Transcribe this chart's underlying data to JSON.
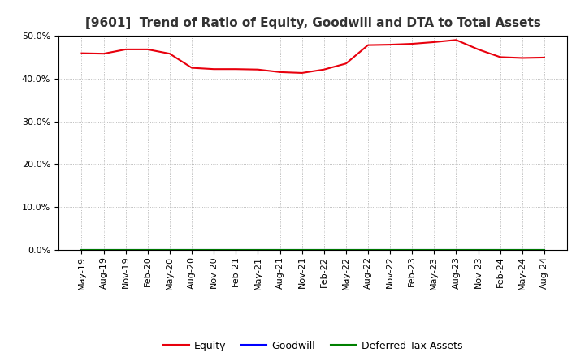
{
  "title": "[9601]  Trend of Ratio of Equity, Goodwill and DTA to Total Assets",
  "x_labels": [
    "May-19",
    "Aug-19",
    "Nov-19",
    "Feb-20",
    "May-20",
    "Aug-20",
    "Nov-20",
    "Feb-21",
    "May-21",
    "Aug-21",
    "Nov-21",
    "Feb-22",
    "May-22",
    "Aug-22",
    "Nov-22",
    "Feb-23",
    "May-23",
    "Aug-23",
    "Nov-23",
    "Feb-24",
    "May-24",
    "Aug-24"
  ],
  "equity": [
    45.9,
    45.8,
    46.8,
    46.8,
    45.8,
    42.5,
    42.2,
    42.2,
    42.1,
    41.5,
    41.3,
    42.1,
    43.5,
    47.8,
    47.9,
    48.1,
    48.5,
    49.0,
    46.8,
    45.0,
    44.8,
    44.9
  ],
  "goodwill": [
    0,
    0,
    0,
    0,
    0,
    0,
    0,
    0,
    0,
    0,
    0,
    0,
    0,
    0,
    0,
    0,
    0,
    0,
    0,
    0,
    0,
    0
  ],
  "dta": [
    0,
    0,
    0,
    0,
    0,
    0,
    0,
    0,
    0,
    0,
    0,
    0,
    0,
    0,
    0,
    0,
    0,
    0,
    0,
    0,
    0,
    0
  ],
  "equity_color": "#e8000d",
  "goodwill_color": "#0000ff",
  "dta_color": "#008000",
  "ylim": [
    0.0,
    50.0
  ],
  "yticks": [
    0.0,
    10.0,
    20.0,
    30.0,
    40.0,
    50.0
  ],
  "background_color": "#ffffff",
  "plot_bg_color": "#ffffff",
  "grid_color": "#aaaaaa",
  "title_fontsize": 11,
  "tick_fontsize": 8,
  "legend_fontsize": 9
}
